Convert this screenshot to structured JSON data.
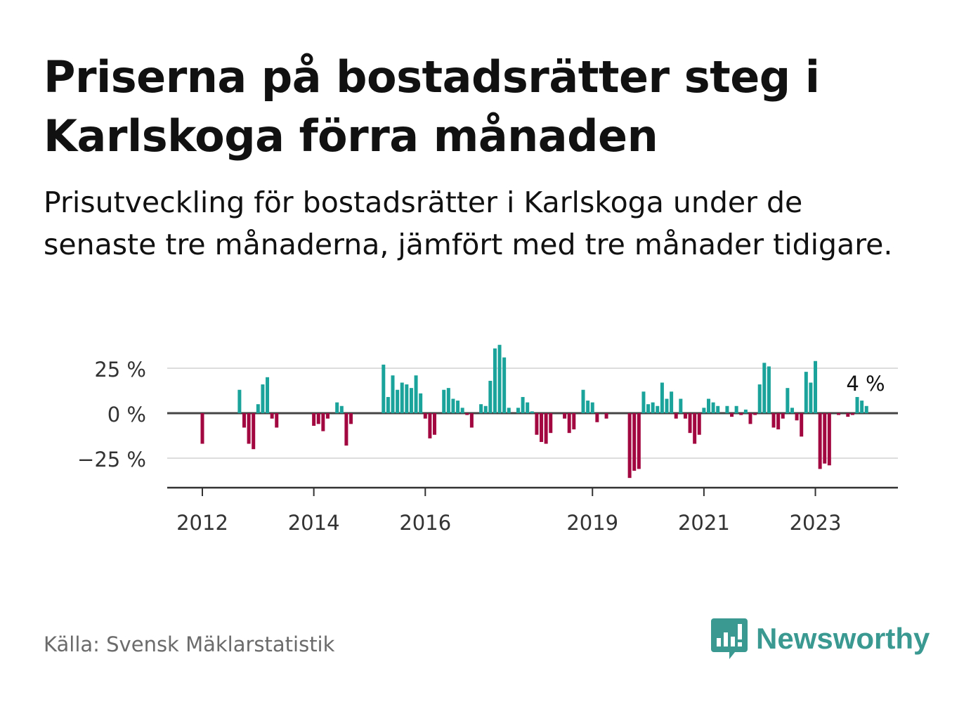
{
  "title": "Priserna på bostadsrätter steg i Karlskoga förra månaden",
  "subtitle": "Prisutveckling för bostadsrätter i Karlskoga under de senaste tre månaderna, jämfört med tre månader tidigare.",
  "source": "Källa: Svensk Mäklarstatistik",
  "brand": {
    "name": "Newsworthy",
    "logo_icon": "bar-chart-speech-bubble-icon",
    "color": "#3a9a92"
  },
  "colors": {
    "positive": "#1aa39a",
    "negative": "#a3073f",
    "zero_line": "#444444",
    "grid": "#dddddd",
    "axis": "#333333"
  },
  "chart_data": {
    "type": "bar",
    "title": "",
    "xlabel": "",
    "ylabel": "",
    "yticks": [
      -25,
      0,
      25
    ],
    "ytick_labels": [
      "−25 %",
      "0 %",
      "25 %"
    ],
    "ylim": [
      -42,
      38
    ],
    "x_ticks": [
      {
        "label": "2012",
        "month": "2012-01"
      },
      {
        "label": "2014",
        "month": "2014-01"
      },
      {
        "label": "2016",
        "month": "2016-01"
      },
      {
        "label": "2019",
        "month": "2019-01"
      },
      {
        "label": "2021",
        "month": "2021-01"
      },
      {
        "label": "2023",
        "month": "2023-01"
      }
    ],
    "annotation": {
      "text": "4 %",
      "month": "2023-10"
    },
    "series": [
      {
        "values": [
          {
            "month": "2012-01",
            "value": -17
          },
          {
            "month": "2012-09",
            "value": 13
          },
          {
            "month": "2012-10",
            "value": -8
          },
          {
            "month": "2012-11",
            "value": -17
          },
          {
            "month": "2012-12",
            "value": -20
          },
          {
            "month": "2013-01",
            "value": 5
          },
          {
            "month": "2013-02",
            "value": 16
          },
          {
            "month": "2013-03",
            "value": 20
          },
          {
            "month": "2013-04",
            "value": -3
          },
          {
            "month": "2013-05",
            "value": -8
          },
          {
            "month": "2014-01",
            "value": -7
          },
          {
            "month": "2014-02",
            "value": -6
          },
          {
            "month": "2014-03",
            "value": -10
          },
          {
            "month": "2014-04",
            "value": -3
          },
          {
            "month": "2014-06",
            "value": 6
          },
          {
            "month": "2014-07",
            "value": 4
          },
          {
            "month": "2014-08",
            "value": -18
          },
          {
            "month": "2014-09",
            "value": -6
          },
          {
            "month": "2015-04",
            "value": 27
          },
          {
            "month": "2015-05",
            "value": 9
          },
          {
            "month": "2015-06",
            "value": 21
          },
          {
            "month": "2015-07",
            "value": 13
          },
          {
            "month": "2015-08",
            "value": 17
          },
          {
            "month": "2015-09",
            "value": 16
          },
          {
            "month": "2015-10",
            "value": 14
          },
          {
            "month": "2015-11",
            "value": 21
          },
          {
            "month": "2015-12",
            "value": 11
          },
          {
            "month": "2016-01",
            "value": -3
          },
          {
            "month": "2016-02",
            "value": -14
          },
          {
            "month": "2016-03",
            "value": -12
          },
          {
            "month": "2016-05",
            "value": 13
          },
          {
            "month": "2016-06",
            "value": 14
          },
          {
            "month": "2016-07",
            "value": 8
          },
          {
            "month": "2016-08",
            "value": 7
          },
          {
            "month": "2016-09",
            "value": 3
          },
          {
            "month": "2016-10",
            "value": -1
          },
          {
            "month": "2016-11",
            "value": -8
          },
          {
            "month": "2017-01",
            "value": 5
          },
          {
            "month": "2017-02",
            "value": 4
          },
          {
            "month": "2017-03",
            "value": 18
          },
          {
            "month": "2017-04",
            "value": 36
          },
          {
            "month": "2017-05",
            "value": 38
          },
          {
            "month": "2017-06",
            "value": 31
          },
          {
            "month": "2017-07",
            "value": 3
          },
          {
            "month": "2017-09",
            "value": 3
          },
          {
            "month": "2017-10",
            "value": 9
          },
          {
            "month": "2017-11",
            "value": 6
          },
          {
            "month": "2017-12",
            "value": 1
          },
          {
            "month": "2018-01",
            "value": -12
          },
          {
            "month": "2018-02",
            "value": -16
          },
          {
            "month": "2018-03",
            "value": -17
          },
          {
            "month": "2018-04",
            "value": -11
          },
          {
            "month": "2018-07",
            "value": -3
          },
          {
            "month": "2018-08",
            "value": -11
          },
          {
            "month": "2018-09",
            "value": -9
          },
          {
            "month": "2018-11",
            "value": 13
          },
          {
            "month": "2018-12",
            "value": 7
          },
          {
            "month": "2019-01",
            "value": 6
          },
          {
            "month": "2019-02",
            "value": -5
          },
          {
            "month": "2019-04",
            "value": -3
          },
          {
            "month": "2019-09",
            "value": -36
          },
          {
            "month": "2019-10",
            "value": -32
          },
          {
            "month": "2019-11",
            "value": -31
          },
          {
            "month": "2019-12",
            "value": 12
          },
          {
            "month": "2020-01",
            "value": 5
          },
          {
            "month": "2020-02",
            "value": 6
          },
          {
            "month": "2020-03",
            "value": 4
          },
          {
            "month": "2020-04",
            "value": 17
          },
          {
            "month": "2020-05",
            "value": 8
          },
          {
            "month": "2020-06",
            "value": 12
          },
          {
            "month": "2020-07",
            "value": -3
          },
          {
            "month": "2020-08",
            "value": 8
          },
          {
            "month": "2020-09",
            "value": -3
          },
          {
            "month": "2020-10",
            "value": -11
          },
          {
            "month": "2020-11",
            "value": -17
          },
          {
            "month": "2020-12",
            "value": -12
          },
          {
            "month": "2021-01",
            "value": 3
          },
          {
            "month": "2021-02",
            "value": 8
          },
          {
            "month": "2021-03",
            "value": 6
          },
          {
            "month": "2021-04",
            "value": 4
          },
          {
            "month": "2021-06",
            "value": 4
          },
          {
            "month": "2021-07",
            "value": -2
          },
          {
            "month": "2021-08",
            "value": 4
          },
          {
            "month": "2021-09",
            "value": -1
          },
          {
            "month": "2021-10",
            "value": 2
          },
          {
            "month": "2021-11",
            "value": -6
          },
          {
            "month": "2021-12",
            "value": -1
          },
          {
            "month": "2022-01",
            "value": 16
          },
          {
            "month": "2022-02",
            "value": 28
          },
          {
            "month": "2022-03",
            "value": 26
          },
          {
            "month": "2022-04",
            "value": -8
          },
          {
            "month": "2022-05",
            "value": -9
          },
          {
            "month": "2022-06",
            "value": -3
          },
          {
            "month": "2022-07",
            "value": 14
          },
          {
            "month": "2022-08",
            "value": 3
          },
          {
            "month": "2022-09",
            "value": -4
          },
          {
            "month": "2022-10",
            "value": -13
          },
          {
            "month": "2022-11",
            "value": 23
          },
          {
            "month": "2022-12",
            "value": 17
          },
          {
            "month": "2023-01",
            "value": 29
          },
          {
            "month": "2023-02",
            "value": -31
          },
          {
            "month": "2023-03",
            "value": -28
          },
          {
            "month": "2023-04",
            "value": -29
          },
          {
            "month": "2023-06",
            "value": -1
          },
          {
            "month": "2023-08",
            "value": -2
          },
          {
            "month": "2023-09",
            "value": -1
          },
          {
            "month": "2023-10",
            "value": 9
          },
          {
            "month": "2023-11",
            "value": 7
          },
          {
            "month": "2023-12",
            "value": 4
          }
        ]
      }
    ]
  }
}
